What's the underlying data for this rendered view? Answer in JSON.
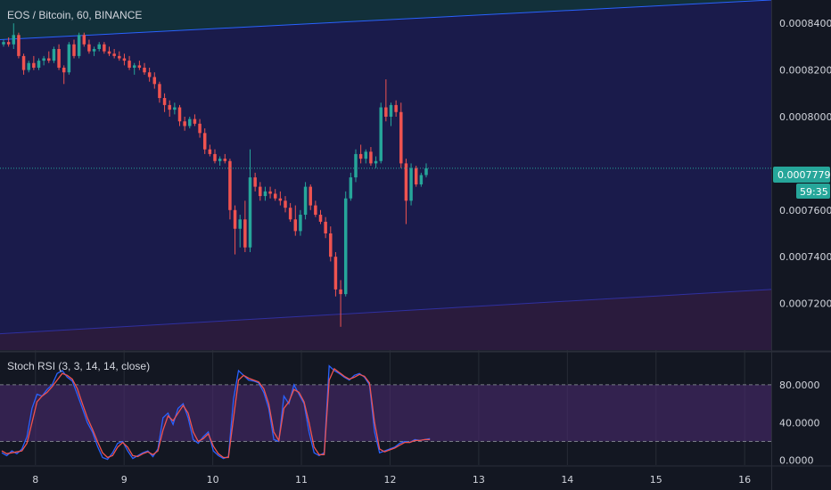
{
  "header": {
    "symbol_title": "EOS / Bitcoin, 60, BINANCE"
  },
  "price_badge": {
    "value": "0.0007779",
    "countdown": "59:35"
  },
  "indicator": {
    "title": "Stoch RSI (3, 3, 14, 14, close)"
  },
  "colors": {
    "background": "#131722",
    "channel_fill": "#1a1b4b",
    "upper_zone_fill": "#12303a",
    "lower_zone_fill": "#2a1b3d",
    "channel_line": "#2962ff",
    "up_candle": "#26a69a",
    "down_candle": "#ef5350",
    "rsi_band": "#4a2a6e",
    "k_line": "#2962ff",
    "d_line": "#ef5350",
    "price_line": "#26a69a"
  },
  "chart_data": [
    {
      "type": "candlestick",
      "title": "EOS / Bitcoin, 60, BINANCE",
      "ylim": [
        0.0007,
        0.00085
      ],
      "xlim": [
        7.6,
        16.3
      ],
      "y_ticks": [
        "0.0008400",
        "0.0008200",
        "0.0008000",
        "0.0007600",
        "0.0007400",
        "0.0007200"
      ],
      "x_ticks": [
        "8",
        "9",
        "10",
        "11",
        "12",
        "13",
        "14",
        "15",
        "16"
      ],
      "current_price": 0.0007779,
      "channel": {
        "upper": [
          [
            7.6,
            0.000833
          ],
          [
            16.3,
            0.00085
          ]
        ],
        "lower": [
          [
            7.6,
            0.000707
          ],
          [
            16.3,
            0.000726
          ]
        ]
      },
      "candles_ohlc": [
        [
          0.000831,
          0.000833,
          0.00083,
          0.000832
        ],
        [
          0.000832,
          0.000834,
          0.00083,
          0.000831
        ],
        [
          0.000831,
          0.00084,
          0.000829,
          0.000835
        ],
        [
          0.000835,
          0.000836,
          0.000825,
          0.000826
        ],
        [
          0.000826,
          0.000827,
          0.000818,
          0.00082
        ],
        [
          0.00082,
          0.000824,
          0.000819,
          0.000823
        ],
        [
          0.000823,
          0.000826,
          0.00082,
          0.000821
        ],
        [
          0.000821,
          0.000825,
          0.00082,
          0.000824
        ],
        [
          0.000824,
          0.000826,
          0.000822,
          0.000825
        ],
        [
          0.000825,
          0.000828,
          0.000823,
          0.000824
        ],
        [
          0.000824,
          0.00083,
          0.000823,
          0.000829
        ],
        [
          0.000829,
          0.000831,
          0.00082,
          0.000821
        ],
        [
          0.000821,
          0.000822,
          0.000814,
          0.000819
        ],
        [
          0.000819,
          0.000832,
          0.000818,
          0.000831
        ],
        [
          0.000831,
          0.000833,
          0.000825,
          0.000826
        ],
        [
          0.000826,
          0.000836,
          0.000825,
          0.000835
        ],
        [
          0.000835,
          0.000836,
          0.00083,
          0.000831
        ],
        [
          0.000831,
          0.000833,
          0.000827,
          0.000828
        ],
        [
          0.000828,
          0.00083,
          0.000826,
          0.000829
        ],
        [
          0.000829,
          0.000832,
          0.000828,
          0.000831
        ],
        [
          0.000831,
          0.000832,
          0.000827,
          0.000828
        ],
        [
          0.000828,
          0.00083,
          0.000826,
          0.000827
        ],
        [
          0.000827,
          0.000829,
          0.000825,
          0.000826
        ],
        [
          0.000826,
          0.000828,
          0.000824,
          0.000825
        ],
        [
          0.000825,
          0.000827,
          0.000822,
          0.000824
        ],
        [
          0.000824,
          0.000826,
          0.00082,
          0.000821
        ],
        [
          0.000821,
          0.000823,
          0.000818,
          0.000822
        ],
        [
          0.000822,
          0.000824,
          0.00082,
          0.000821
        ],
        [
          0.000821,
          0.000823,
          0.000818,
          0.000819
        ],
        [
          0.000819,
          0.000821,
          0.000815,
          0.000817
        ],
        [
          0.000817,
          0.000819,
          0.000812,
          0.000814
        ],
        [
          0.000814,
          0.000815,
          0.000806,
          0.000808
        ],
        [
          0.000808,
          0.00081,
          0.000802,
          0.000805
        ],
        [
          0.000805,
          0.000807,
          0.0008,
          0.000803
        ],
        [
          0.000803,
          0.000806,
          0.000801,
          0.000804
        ],
        [
          0.000804,
          0.000805,
          0.000796,
          0.000798
        ],
        [
          0.000798,
          0.0008,
          0.000794,
          0.000796
        ],
        [
          0.000796,
          0.0008,
          0.000795,
          0.000799
        ],
        [
          0.000799,
          0.000801,
          0.000796,
          0.000797
        ],
        [
          0.000797,
          0.000799,
          0.000791,
          0.000793
        ],
        [
          0.000793,
          0.000795,
          0.000784,
          0.000786
        ],
        [
          0.000786,
          0.000788,
          0.000783,
          0.000784
        ],
        [
          0.000784,
          0.000786,
          0.00078,
          0.000781
        ],
        [
          0.000781,
          0.000783,
          0.000779,
          0.000782
        ],
        [
          0.000782,
          0.000784,
          0.00078,
          0.000781
        ],
        [
          0.000781,
          0.000782,
          0.000756,
          0.00076
        ],
        [
          0.00076,
          0.000762,
          0.000741,
          0.000752
        ],
        [
          0.000752,
          0.000758,
          0.000744,
          0.000756
        ],
        [
          0.000756,
          0.000764,
          0.000742,
          0.000744
        ],
        [
          0.000744,
          0.000786,
          0.000742,
          0.000774
        ],
        [
          0.000774,
          0.000776,
          0.000768,
          0.00077
        ],
        [
          0.00077,
          0.000772,
          0.000764,
          0.000766
        ],
        [
          0.000766,
          0.00077,
          0.000764,
          0.000768
        ],
        [
          0.000768,
          0.00077,
          0.000765,
          0.000767
        ],
        [
          0.000767,
          0.000769,
          0.000764,
          0.000765
        ],
        [
          0.000765,
          0.000768,
          0.000762,
          0.000764
        ],
        [
          0.000764,
          0.000766,
          0.000759,
          0.000761
        ],
        [
          0.000761,
          0.000763,
          0.000755,
          0.000756
        ],
        [
          0.000756,
          0.000762,
          0.000749,
          0.000751
        ],
        [
          0.000751,
          0.00076,
          0.000749,
          0.000758
        ],
        [
          0.000758,
          0.000772,
          0.000756,
          0.00077
        ],
        [
          0.00077,
          0.000771,
          0.00076,
          0.000762
        ],
        [
          0.000762,
          0.000764,
          0.000757,
          0.000758
        ],
        [
          0.000758,
          0.00076,
          0.000754,
          0.000755
        ],
        [
          0.000755,
          0.000757,
          0.000748,
          0.00075
        ],
        [
          0.00075,
          0.000753,
          0.000738,
          0.00074
        ],
        [
          0.00074,
          0.000742,
          0.000723,
          0.000726
        ],
        [
          0.000726,
          0.00073,
          0.00071,
          0.000724
        ],
        [
          0.000724,
          0.000768,
          0.000723,
          0.000765
        ],
        [
          0.000765,
          0.000776,
          0.000764,
          0.000774
        ],
        [
          0.000774,
          0.000786,
          0.000772,
          0.000784
        ],
        [
          0.000784,
          0.000788,
          0.00078,
          0.000782
        ],
        [
          0.000782,
          0.000786,
          0.00078,
          0.000785
        ],
        [
          0.000785,
          0.000787,
          0.000779,
          0.00078
        ],
        [
          0.00078,
          0.000783,
          0.000778,
          0.000781
        ],
        [
          0.000781,
          0.000806,
          0.00078,
          0.000804
        ],
        [
          0.000804,
          0.000816,
          0.000798,
          0.0008
        ],
        [
          0.0008,
          0.000806,
          0.000796,
          0.000805
        ],
        [
          0.000805,
          0.000807,
          0.0008,
          0.000802
        ],
        [
          0.000802,
          0.000806,
          0.000778,
          0.00078
        ],
        [
          0.00078,
          0.000782,
          0.000754,
          0.000764
        ],
        [
          0.000764,
          0.00078,
          0.000762,
          0.000778
        ],
        [
          0.000778,
          0.000779,
          0.00077,
          0.000771
        ],
        [
          0.000771,
          0.000776,
          0.00077,
          0.000775
        ],
        [
          0.000775,
          0.00078,
          0.000774,
          0.0007779
        ]
      ]
    },
    {
      "type": "line",
      "title": "Stoch RSI (3, 3, 14, 14, close)",
      "ylim": [
        -5,
        112
      ],
      "y_ticks": [
        "80.0000",
        "40.0000",
        "0.0000"
      ],
      "bands": [
        20,
        80
      ],
      "x_range": [
        7.6,
        12.45
      ],
      "series": [
        {
          "values": [
            8,
            5,
            10,
            7,
            12,
            25,
            55,
            70,
            68,
            75,
            80,
            92,
            95,
            88,
            84,
            70,
            55,
            40,
            30,
            15,
            3,
            1,
            8,
            18,
            20,
            10,
            2,
            5,
            8,
            10,
            4,
            12,
            45,
            50,
            38,
            55,
            60,
            45,
            22,
            18,
            25,
            30,
            10,
            5,
            2,
            4,
            65,
            95,
            90,
            85,
            84,
            82,
            72,
            55,
            22,
            20,
            68,
            60,
            80,
            70,
            60,
            30,
            8,
            5,
            8,
            100,
            95,
            92,
            88,
            85,
            90,
            92,
            88,
            80,
            30,
            8,
            10,
            12,
            14,
            18,
            20,
            19,
            22,
            21,
            22,
            23
          ]
        },
        {
          "values": [
            10,
            7,
            8,
            9,
            10,
            18,
            40,
            62,
            68,
            72,
            78,
            85,
            92,
            90,
            86,
            76,
            60,
            45,
            33,
            20,
            8,
            3,
            5,
            14,
            19,
            14,
            5,
            4,
            7,
            9,
            6,
            10,
            32,
            47,
            42,
            50,
            58,
            50,
            30,
            20,
            23,
            28,
            15,
            7,
            3,
            3,
            45,
            85,
            90,
            87,
            85,
            83,
            76,
            60,
            30,
            21,
            55,
            62,
            75,
            72,
            62,
            40,
            14,
            6,
            6,
            85,
            97,
            93,
            89,
            86,
            88,
            91,
            89,
            82,
            40,
            12,
            9,
            11,
            13,
            16,
            19,
            19,
            21,
            21,
            22,
            22
          ]
        }
      ]
    }
  ]
}
